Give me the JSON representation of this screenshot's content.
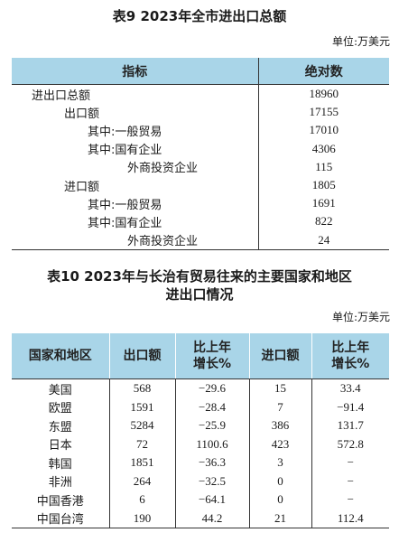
{
  "table9": {
    "title": "表9  2023年全市进出口总额",
    "unit": "单位:万美元",
    "headers": [
      "指标",
      "绝对数"
    ],
    "rows": [
      {
        "label": "进出口总额",
        "value": "18960"
      },
      {
        "label": "出口额",
        "value": "17155"
      },
      {
        "label": "其中:一般贸易",
        "value": "17010"
      },
      {
        "label": "其中:国有企业",
        "value": "4306"
      },
      {
        "label": "外商投资企业",
        "value": "115"
      },
      {
        "label": "进口额",
        "value": "1805"
      },
      {
        "label": "其中:一般贸易",
        "value": "1691"
      },
      {
        "label": "其中:国有企业",
        "value": "822"
      },
      {
        "label": "外商投资企业",
        "value": "24"
      }
    ]
  },
  "table10": {
    "title_line1": "表10  2023年与长治有贸易往来的主要国家和地区",
    "title_line2": "进出口情况",
    "unit": "单位:万美元",
    "headers": [
      "国家和地区",
      "出口额",
      "比上年增长%",
      "进口额",
      "比上年增长%"
    ],
    "rows": [
      [
        "美国",
        "568",
        "−29.6",
        "15",
        "33.4"
      ],
      [
        "欧盟",
        "1591",
        "−28.4",
        "7",
        "−91.4"
      ],
      [
        "东盟",
        "5284",
        "−25.9",
        "386",
        "131.7"
      ],
      [
        "日本",
        "72",
        "1100.6",
        "423",
        "572.8"
      ],
      [
        "韩国",
        "1851",
        "−36.3",
        "3",
        "−"
      ],
      [
        "非洲",
        "264",
        "−32.5",
        "0",
        "−"
      ],
      [
        "中国香港",
        "6",
        "−64.1",
        "0",
        "−"
      ],
      [
        "中国台湾",
        "190",
        "44.2",
        "21",
        "112.4"
      ]
    ]
  }
}
